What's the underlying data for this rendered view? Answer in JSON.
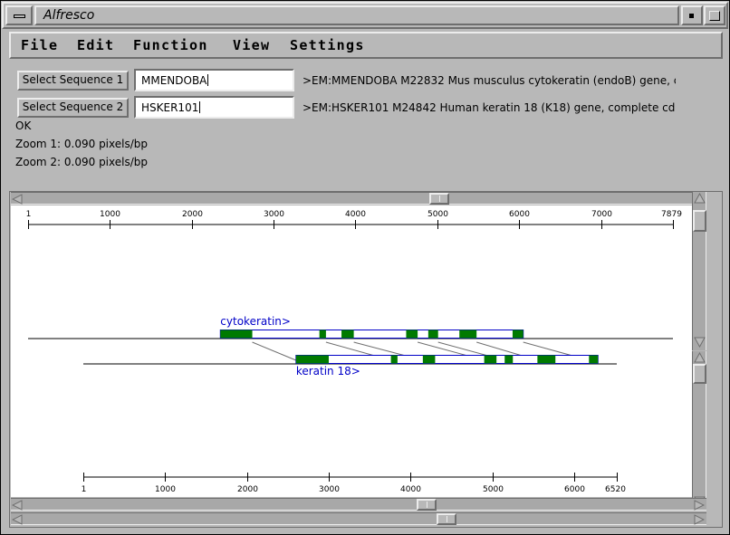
{
  "window": {
    "title": "Alfresco"
  },
  "menubar": {
    "items": [
      "File",
      "Edit",
      "Function",
      "View",
      "Settings"
    ]
  },
  "sequence1": {
    "button_label": "Select Sequence 1",
    "value": "MMENDOBA",
    "description": ">EM:MMENDOBA M22832 Mus musculus cytokeratin (endoB) gene, c"
  },
  "sequence2": {
    "button_label": "Select Sequence 2",
    "value": "HSKER101",
    "description": ">EM:HSKER101 M24842 Human keratin 18 (K18) gene, complete cd"
  },
  "status": {
    "message": "OK",
    "zoom1": "Zoom 1: 0.090 pixels/bp",
    "zoom2": "Zoom 2: 0.090 pixels/bp"
  },
  "plot": {
    "top_ruler": {
      "length": 7879,
      "ticks": [
        1,
        1000,
        2000,
        3000,
        4000,
        5000,
        6000,
        7000,
        7879
      ]
    },
    "bottom_ruler": {
      "length": 6520,
      "ticks": [
        1,
        1000,
        2000,
        3000,
        4000,
        5000,
        6000,
        6520
      ]
    },
    "seq1": {
      "feature_label": "cytokeratin>",
      "feature_range": [
        2350,
        6050
      ],
      "exons": [
        [
          2350,
          2740
        ],
        [
          3560,
          3640
        ],
        [
          3830,
          3980
        ],
        [
          4620,
          4760
        ],
        [
          4890,
          5010
        ],
        [
          5270,
          5480
        ],
        [
          5920,
          6050
        ]
      ]
    },
    "seq2": {
      "feature_label": "keratin 18>",
      "feature_range": [
        2600,
        6290
      ],
      "exons": [
        [
          2600,
          3000
        ],
        [
          3760,
          3840
        ],
        [
          4150,
          4300
        ],
        [
          4900,
          5050
        ],
        [
          5150,
          5250
        ],
        [
          5550,
          5770
        ],
        [
          6180,
          6290
        ]
      ]
    },
    "colors": {
      "exon": "#007a00",
      "box": "#0000c8",
      "label": "#0000c8",
      "line": "#000000",
      "link": "#6e6e6e"
    }
  }
}
